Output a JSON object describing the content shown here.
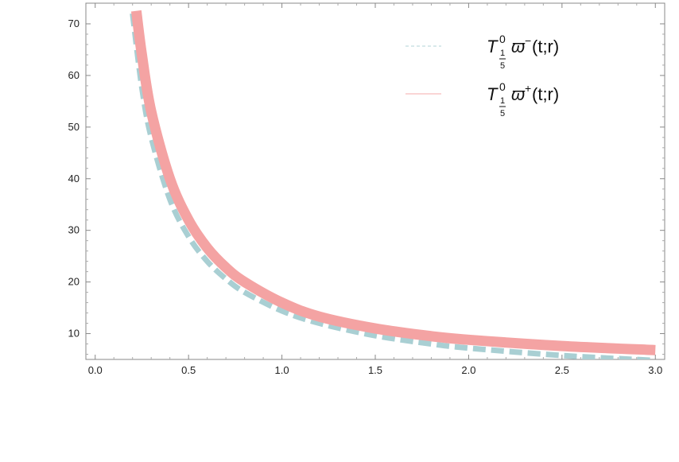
{
  "chart_data": {
    "type": "line",
    "title": "",
    "xlabel": "",
    "ylabel": "",
    "xlim": [
      -0.05,
      3.05
    ],
    "ylim": [
      5,
      74
    ],
    "x_ticks": [
      "0.0",
      "0.5",
      "1.0",
      "1.5",
      "2.0",
      "2.5",
      "3.0"
    ],
    "y_ticks": [
      "10",
      "20",
      "30",
      "40",
      "50",
      "60",
      "70"
    ],
    "grid": false,
    "legend_position": "top-right",
    "series": [
      {
        "name_parts": {
          "base": "T",
          "sup": "0",
          "sub_num": "1",
          "sub_den": "5",
          "symbol": "ϖ",
          "symbol_sup": "−",
          "args": "(t;r)"
        },
        "style": "dashed",
        "color": "#a9cfd3",
        "x": [
          0.2,
          0.25,
          0.3,
          0.4,
          0.5,
          0.6,
          0.7,
          0.8,
          1.0,
          1.2,
          1.5,
          1.8,
          2.0,
          2.5,
          3.0
        ],
        "y": [
          72.0,
          57.6,
          48.0,
          36.0,
          28.8,
          24.0,
          20.6,
          18.0,
          14.4,
          12.0,
          9.6,
          8.0,
          7.2,
          5.76,
          4.8
        ]
      },
      {
        "name_parts": {
          "base": "T",
          "sup": "0",
          "sub_num": "1",
          "sub_den": "5",
          "symbol": "ϖ",
          "symbol_sup": "+",
          "args": "(t;r)"
        },
        "style": "solid",
        "color": "#f4a3a3",
        "x": [
          0.22,
          0.25,
          0.3,
          0.4,
          0.5,
          0.6,
          0.7,
          0.8,
          1.0,
          1.2,
          1.5,
          1.8,
          2.0,
          2.5,
          3.0
        ],
        "y": [
          72.5,
          64.0,
          53.0,
          40.0,
          32.0,
          26.6,
          22.8,
          20.0,
          16.0,
          13.3,
          11.0,
          9.5,
          8.8,
          7.6,
          6.8
        ]
      }
    ]
  }
}
